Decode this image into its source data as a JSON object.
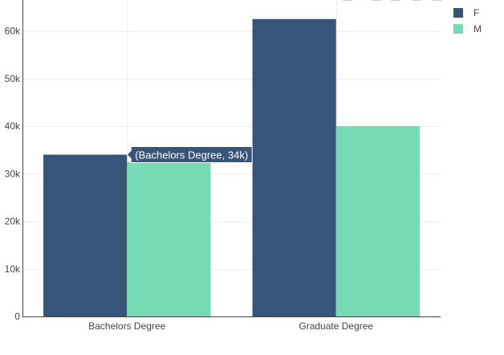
{
  "chart_data": {
    "type": "bar",
    "barmode": "group",
    "title": "",
    "xlabel": "",
    "ylabel": "",
    "categories": [
      "Bachelors Degree",
      "Graduate Degree"
    ],
    "series": [
      {
        "name": "F",
        "color": "#375479",
        "values": [
          34000,
          62500
        ]
      },
      {
        "name": "M",
        "color": "#76dbb5",
        "values": [
          32500,
          40000
        ]
      }
    ],
    "ylim": [
      0,
      66500
    ],
    "yticks": [
      0,
      10000,
      20000,
      30000,
      40000,
      50000,
      60000
    ],
    "ytick_labels": [
      "0",
      "10k",
      "20k",
      "30k",
      "40k",
      "50k",
      "60k"
    ],
    "grid": true,
    "legend": {
      "placement": "top-right"
    },
    "tooltip": {
      "category_index": 0,
      "series_index": 0,
      "text": "(Bachelors Degree, 34k)"
    }
  },
  "modebar": {
    "icons": [
      "camera-icon",
      "zoom-icon",
      "pan-icon",
      "box-select-icon",
      "lasso-icon"
    ]
  }
}
